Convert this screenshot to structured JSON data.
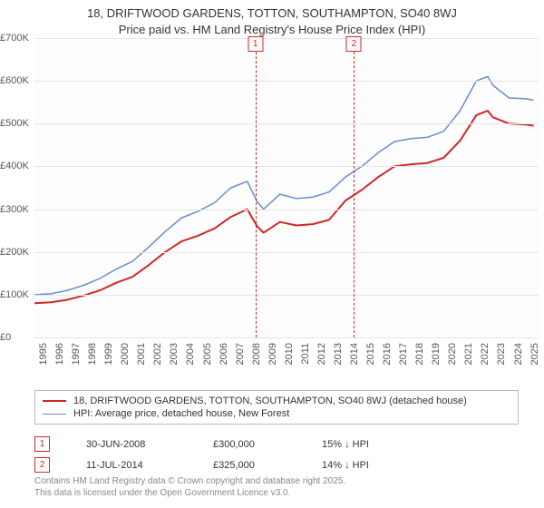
{
  "title": {
    "line1": "18, DRIFTWOOD GARDENS, TOTTON, SOUTHAMPTON, SO40 8WJ",
    "line2": "Price paid vs. HM Land Registry's House Price Index (HPI)"
  },
  "chart": {
    "type": "line",
    "background_color": "#fdfdfd",
    "grid_color": "#e5e5e5",
    "xlim": [
      1995,
      2025.8
    ],
    "ylim": [
      0,
      700000
    ],
    "ytick_step": 100000,
    "ytick_labels": [
      "£0",
      "£100K",
      "£200K",
      "£300K",
      "£400K",
      "£500K",
      "£600K",
      "£700K"
    ],
    "xticks": [
      1995,
      1996,
      1997,
      1998,
      1999,
      2000,
      2001,
      2002,
      2003,
      2004,
      2005,
      2006,
      2007,
      2008,
      2009,
      2010,
      2011,
      2012,
      2013,
      2014,
      2015,
      2016,
      2017,
      2018,
      2019,
      2020,
      2021,
      2022,
      2023,
      2024,
      2025
    ],
    "series": [
      {
        "id": "property",
        "label": "18, DRIFTWOOD GARDENS, TOTTON, SOUTHAMPTON, SO40 8WJ (detached house)",
        "color": "#d02828",
        "width": 2,
        "points": [
          [
            1995,
            80000
          ],
          [
            1996,
            82000
          ],
          [
            1997,
            88000
          ],
          [
            1998,
            98000
          ],
          [
            1999,
            110000
          ],
          [
            2000,
            128000
          ],
          [
            2001,
            142000
          ],
          [
            2002,
            170000
          ],
          [
            2003,
            200000
          ],
          [
            2004,
            225000
          ],
          [
            2005,
            238000
          ],
          [
            2006,
            255000
          ],
          [
            2007,
            282000
          ],
          [
            2008,
            300000
          ],
          [
            2008.6,
            260000
          ],
          [
            2009,
            245000
          ],
          [
            2010,
            270000
          ],
          [
            2011,
            262000
          ],
          [
            2012,
            265000
          ],
          [
            2013,
            275000
          ],
          [
            2014,
            320000
          ],
          [
            2015,
            345000
          ],
          [
            2016,
            375000
          ],
          [
            2017,
            400000
          ],
          [
            2018,
            405000
          ],
          [
            2019,
            408000
          ],
          [
            2020,
            420000
          ],
          [
            2021,
            460000
          ],
          [
            2022,
            520000
          ],
          [
            2022.7,
            530000
          ],
          [
            2023,
            515000
          ],
          [
            2024,
            500000
          ],
          [
            2025,
            498000
          ],
          [
            2025.5,
            495000
          ]
        ]
      },
      {
        "id": "hpi",
        "label": "HPI: Average price, detached house, New Forest",
        "color": "#6a8ec8",
        "width": 1.5,
        "points": [
          [
            1995,
            100000
          ],
          [
            1996,
            102000
          ],
          [
            1997,
            110000
          ],
          [
            1998,
            122000
          ],
          [
            1999,
            138000
          ],
          [
            2000,
            160000
          ],
          [
            2001,
            178000
          ],
          [
            2002,
            212000
          ],
          [
            2003,
            248000
          ],
          [
            2004,
            280000
          ],
          [
            2005,
            295000
          ],
          [
            2006,
            315000
          ],
          [
            2007,
            350000
          ],
          [
            2008,
            365000
          ],
          [
            2008.6,
            318000
          ],
          [
            2009,
            300000
          ],
          [
            2010,
            335000
          ],
          [
            2011,
            325000
          ],
          [
            2012,
            328000
          ],
          [
            2013,
            340000
          ],
          [
            2014,
            375000
          ],
          [
            2015,
            400000
          ],
          [
            2016,
            432000
          ],
          [
            2017,
            458000
          ],
          [
            2018,
            465000
          ],
          [
            2019,
            468000
          ],
          [
            2020,
            482000
          ],
          [
            2021,
            530000
          ],
          [
            2022,
            600000
          ],
          [
            2022.7,
            610000
          ],
          [
            2023,
            590000
          ],
          [
            2024,
            560000
          ],
          [
            2025,
            558000
          ],
          [
            2025.5,
            555000
          ]
        ]
      }
    ],
    "markers": [
      {
        "index": "1",
        "x": 2008.5
      },
      {
        "index": "2",
        "x": 2014.52
      }
    ]
  },
  "sales": [
    {
      "index": "1",
      "date": "30-JUN-2008",
      "price": "£300,000",
      "diff": "15% ↓ HPI"
    },
    {
      "index": "2",
      "date": "11-JUL-2014",
      "price": "£325,000",
      "diff": "14% ↓ HPI"
    }
  ],
  "footer": {
    "line1": "Contains HM Land Registry data © Crown copyright and database right 2025.",
    "line2": "This data is licensed under the Open Government Licence v3.0."
  },
  "axis_fontsize": 11,
  "title_fontsize": 13
}
